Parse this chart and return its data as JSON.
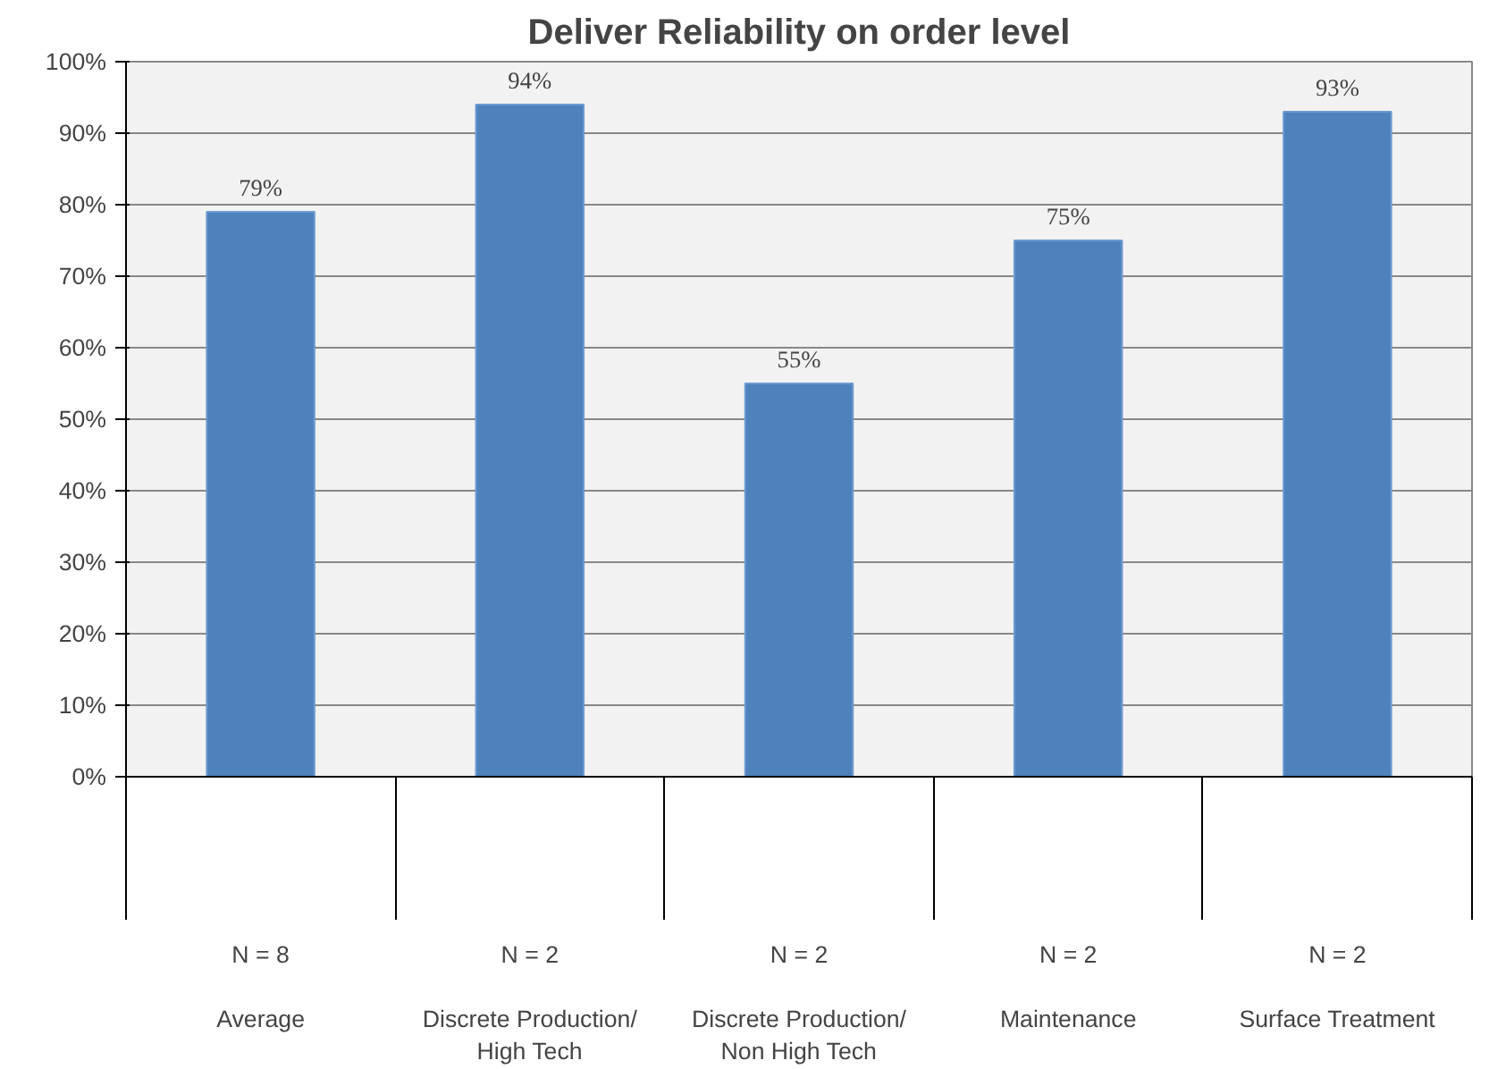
{
  "chart_data": {
    "type": "bar",
    "title": "Deliver Reliability on order level",
    "categories": [
      "N = 8\n\nAverage",
      "N = 2\n\nDiscrete Production/\nHigh Tech",
      "N = 2\n\nDiscrete Production/\nNon High Tech",
      "N = 2\n\nMaintenance",
      "N = 2\n\nSurface Treatment"
    ],
    "values": [
      79,
      94,
      55,
      75,
      93
    ],
    "value_labels": [
      "79%",
      "94%",
      "55%",
      "75%",
      "93%"
    ],
    "color": "#4f81bd",
    "ylim": [
      0,
      100
    ],
    "yticks": [
      {
        "value": 0,
        "label": "0%"
      },
      {
        "value": 10,
        "label": "10%"
      },
      {
        "value": 20,
        "label": "20%"
      },
      {
        "value": 30,
        "label": "30%"
      },
      {
        "value": 40,
        "label": "40%"
      },
      {
        "value": 50,
        "label": "50%"
      },
      {
        "value": 60,
        "label": "60%"
      },
      {
        "value": 70,
        "label": "70%"
      },
      {
        "value": 80,
        "label": "80%"
      },
      {
        "value": 90,
        "label": "90%"
      },
      {
        "value": 100,
        "label": "100%"
      }
    ],
    "grid": "y"
  }
}
